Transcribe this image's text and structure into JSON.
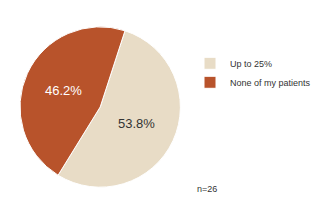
{
  "chart_data": {
    "type": "pie",
    "categories": [
      "Up to 25%",
      "None of my patients"
    ],
    "values": [
      53.8,
      46.2
    ],
    "value_labels": [
      "53.8%",
      "46.2%"
    ],
    "colors": [
      "#e8dcc6",
      "#b8532b"
    ],
    "data_labels": true,
    "legend": "right",
    "annotations": [
      "n=26"
    ]
  }
}
